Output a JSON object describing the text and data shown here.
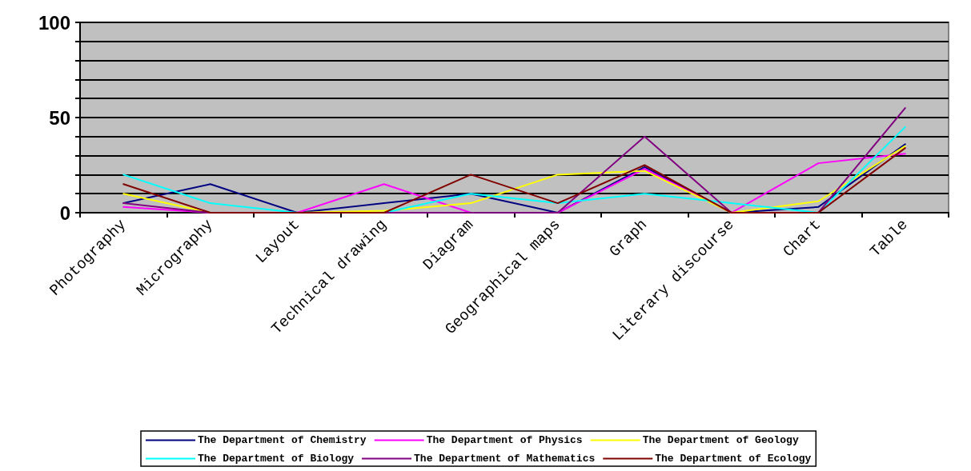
{
  "chart_data": {
    "type": "line",
    "categories": [
      "Photography",
      "Micrography",
      "Layout",
      "Technical drawing",
      "Diagram",
      "Geographical maps",
      "Graph",
      "Literary discourse",
      "Chart",
      "Table"
    ],
    "series": [
      {
        "name": "The Department of Chemistry",
        "color": "#000080",
        "values": [
          5,
          15,
          0,
          5,
          10,
          0,
          24,
          0,
          3,
          36
        ]
      },
      {
        "name": "The Department of Physics",
        "color": "#ff00ff",
        "values": [
          3,
          0,
          0,
          15,
          0,
          0,
          23,
          0,
          26,
          31
        ]
      },
      {
        "name": "The Department of Geology",
        "color": "#ffff00",
        "values": [
          10,
          0,
          0,
          1,
          5,
          20,
          22,
          0,
          6,
          35
        ]
      },
      {
        "name": "The Department of Biology",
        "color": "#00ffff",
        "values": [
          20,
          5,
          0,
          0,
          10,
          5,
          10,
          5,
          0,
          45
        ]
      },
      {
        "name": "The Department of Mathematics",
        "color": "#800080",
        "values": [
          5,
          0,
          0,
          0,
          0,
          0,
          40,
          0,
          0,
          55
        ]
      },
      {
        "name": "The Department of Ecology",
        "color": "#800000",
        "values": [
          15,
          0,
          0,
          0,
          20,
          5,
          25,
          0,
          0,
          34
        ]
      }
    ],
    "ylim": [
      0,
      100
    ],
    "yticks": [
      0,
      {
        "value": 10,
        "label": null
      },
      {
        "value": 20,
        "label": null
      },
      {
        "value": 30,
        "label": null
      },
      {
        "value": 40,
        "label": null
      },
      50,
      {
        "value": 60,
        "label": null
      },
      {
        "value": 70,
        "label": null
      },
      {
        "value": 80,
        "label": null
      },
      {
        "value": 90,
        "label": null
      },
      100
    ],
    "grid": "y",
    "legend": "bottom",
    "marker": "none",
    "line_style": "solid"
  }
}
